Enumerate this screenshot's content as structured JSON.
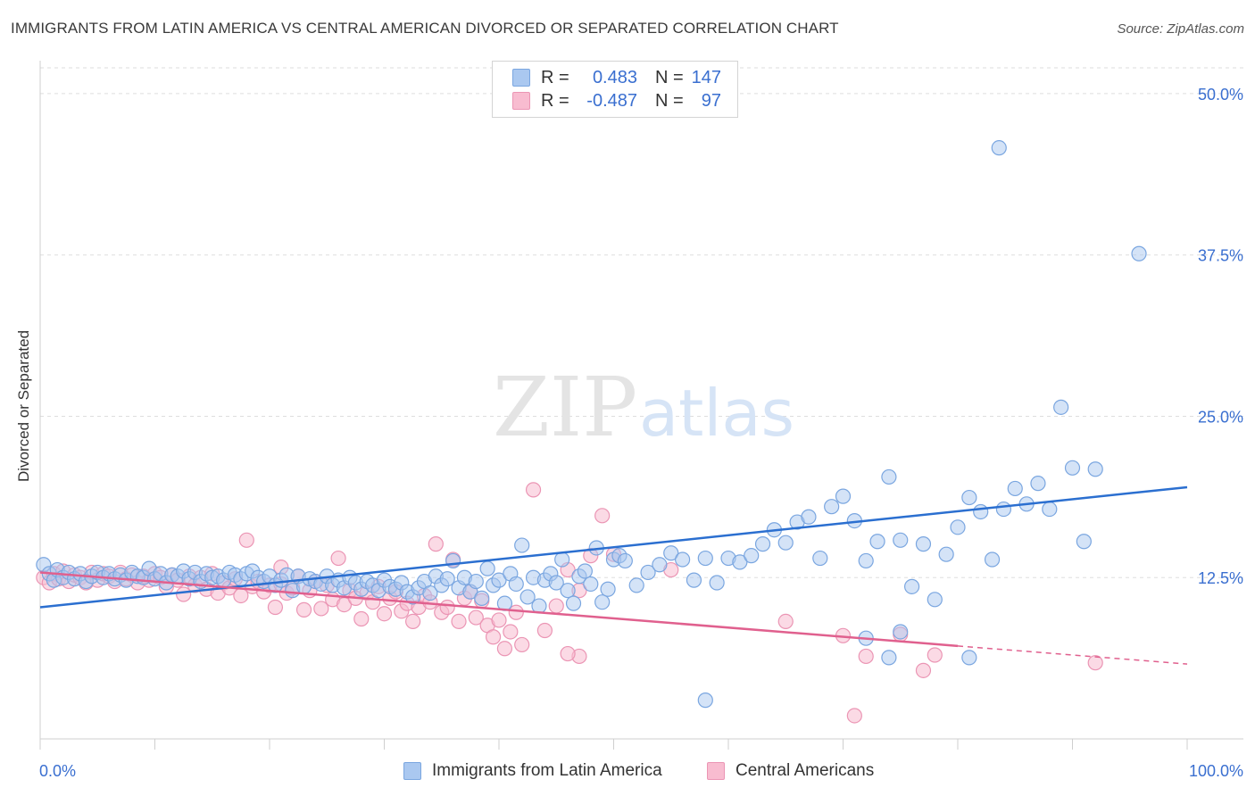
{
  "title": "IMMIGRANTS FROM LATIN AMERICA VS CENTRAL AMERICAN DIVORCED OR SEPARATED CORRELATION CHART",
  "source": "Source: ZipAtlas.com",
  "watermark": {
    "zip": "ZIP",
    "atlas": "atlas"
  },
  "colors": {
    "blue_fill": "#aac8f0",
    "blue_stroke": "#7aa6e0",
    "blue_line": "#2b6fd0",
    "pink_fill": "#f8bcd0",
    "pink_stroke": "#eb95b4",
    "pink_line": "#e0608e",
    "tick_text": "#3a6fd0",
    "grid": "#dddddd"
  },
  "legend": {
    "rows": [
      {
        "r_label": "R =",
        "r_value": "0.483",
        "n_label": "N =",
        "n_value": "147",
        "color": "#aac8f0"
      },
      {
        "r_label": "R =",
        "r_value": "-0.487",
        "n_label": "N =",
        "n_value": "97",
        "color": "#f8bcd0"
      }
    ]
  },
  "bottom_legend": {
    "series1": "Immigrants from Latin America",
    "series2": "Central Americans"
  },
  "chart_data": {
    "type": "scatter",
    "title": "IMMIGRANTS FROM LATIN AMERICA VS CENTRAL AMERICAN DIVORCED OR SEPARATED CORRELATION CHART",
    "xlabel": "",
    "ylabel": "Divorced or Separated",
    "xlim": [
      0,
      100
    ],
    "ylim": [
      0,
      52
    ],
    "x_tick_labels": [
      "0.0%",
      "100.0%"
    ],
    "y_ticks": [
      12.5,
      25.0,
      37.5,
      50.0
    ],
    "y_tick_labels": [
      "12.5%",
      "25.0%",
      "37.5%",
      "50.0%"
    ],
    "grid": true,
    "series": [
      {
        "name": "Immigrants from Latin America",
        "r": 0.483,
        "n": 147,
        "trend": {
          "x": [
            0,
            100
          ],
          "y": [
            10.2,
            19.5
          ]
        },
        "points": [
          [
            0.3,
            13.5
          ],
          [
            0.8,
            12.8
          ],
          [
            1.2,
            12.3
          ],
          [
            1.5,
            13.1
          ],
          [
            2,
            12.5
          ],
          [
            2.5,
            12.9
          ],
          [
            3,
            12.4
          ],
          [
            3.5,
            12.8
          ],
          [
            4,
            12.2
          ],
          [
            4.5,
            12.6
          ],
          [
            5,
            12.9
          ],
          [
            5.5,
            12.5
          ],
          [
            6,
            12.8
          ],
          [
            6.5,
            12.4
          ],
          [
            7,
            12.7
          ],
          [
            7.5,
            12.3
          ],
          [
            8,
            12.9
          ],
          [
            8.5,
            12.6
          ],
          [
            9,
            12.5
          ],
          [
            9.5,
            13.2
          ],
          [
            10,
            12.4
          ],
          [
            10.5,
            12.8
          ],
          [
            11,
            12.1
          ],
          [
            11.5,
            12.7
          ],
          [
            12,
            12.6
          ],
          [
            12.5,
            13.0
          ],
          [
            13,
            12.4
          ],
          [
            13.5,
            12.9
          ],
          [
            14,
            12.2
          ],
          [
            14.5,
            12.8
          ],
          [
            15,
            12.5
          ],
          [
            15.5,
            12.6
          ],
          [
            16,
            12.3
          ],
          [
            16.5,
            12.9
          ],
          [
            17,
            12.7
          ],
          [
            17.5,
            12.4
          ],
          [
            18,
            12.8
          ],
          [
            18.5,
            13.0
          ],
          [
            19,
            12.5
          ],
          [
            19.5,
            12.2
          ],
          [
            20,
            12.6
          ],
          [
            20.5,
            11.9
          ],
          [
            21,
            12.3
          ],
          [
            21.5,
            12.7
          ],
          [
            22,
            11.5
          ],
          [
            22.5,
            12.6
          ],
          [
            23,
            11.8
          ],
          [
            23.5,
            12.4
          ],
          [
            24,
            12.2
          ],
          [
            24.5,
            12.0
          ],
          [
            25,
            12.6
          ],
          [
            25.5,
            11.9
          ],
          [
            26,
            12.3
          ],
          [
            26.5,
            11.7
          ],
          [
            27,
            12.5
          ],
          [
            27.5,
            12.1
          ],
          [
            28,
            11.6
          ],
          [
            28.5,
            12.2
          ],
          [
            29,
            11.9
          ],
          [
            29.5,
            11.5
          ],
          [
            30,
            12.3
          ],
          [
            30.5,
            11.8
          ],
          [
            31,
            11.6
          ],
          [
            31.5,
            12.1
          ],
          [
            32,
            11.4
          ],
          [
            32.5,
            11.0
          ],
          [
            33,
            11.7
          ],
          [
            33.5,
            12.2
          ],
          [
            34,
            11.3
          ],
          [
            34.5,
            12.6
          ],
          [
            35,
            11.9
          ],
          [
            35.5,
            12.4
          ],
          [
            36,
            13.8
          ],
          [
            36.5,
            11.7
          ],
          [
            37,
            12.5
          ],
          [
            37.5,
            11.4
          ],
          [
            38,
            12.2
          ],
          [
            38.5,
            10.9
          ],
          [
            39,
            13.2
          ],
          [
            39.5,
            11.9
          ],
          [
            40,
            12.3
          ],
          [
            40.5,
            10.5
          ],
          [
            41,
            12.8
          ],
          [
            41.5,
            12.0
          ],
          [
            42,
            15.0
          ],
          [
            42.5,
            11.0
          ],
          [
            43,
            12.5
          ],
          [
            43.5,
            10.3
          ],
          [
            44,
            12.3
          ],
          [
            44.5,
            12.8
          ],
          [
            45,
            12.1
          ],
          [
            45.5,
            13.9
          ],
          [
            46,
            11.5
          ],
          [
            46.5,
            10.5
          ],
          [
            47,
            12.6
          ],
          [
            47.5,
            13.0
          ],
          [
            48,
            12.0
          ],
          [
            48.5,
            14.8
          ],
          [
            49,
            10.6
          ],
          [
            49.5,
            11.6
          ],
          [
            50,
            13.9
          ],
          [
            50.5,
            14.2
          ],
          [
            51,
            13.8
          ],
          [
            52,
            11.9
          ],
          [
            53,
            12.9
          ],
          [
            54,
            13.5
          ],
          [
            55,
            14.4
          ],
          [
            56,
            13.9
          ],
          [
            57,
            12.3
          ],
          [
            58,
            14.0
          ],
          [
            59,
            12.1
          ],
          [
            60,
            14.0
          ],
          [
            61,
            13.7
          ],
          [
            62,
            14.2
          ],
          [
            63,
            15.1
          ],
          [
            64,
            16.2
          ],
          [
            65,
            15.2
          ],
          [
            66,
            16.8
          ],
          [
            67,
            17.2
          ],
          [
            68,
            14.0
          ],
          [
            69,
            18.0
          ],
          [
            70,
            18.8
          ],
          [
            71,
            16.9
          ],
          [
            72,
            13.8
          ],
          [
            73,
            15.3
          ],
          [
            74,
            20.3
          ],
          [
            75,
            15.4
          ],
          [
            76,
            11.8
          ],
          [
            77,
            15.1
          ],
          [
            78,
            10.8
          ],
          [
            79,
            14.3
          ],
          [
            80,
            16.4
          ],
          [
            81,
            18.7
          ],
          [
            82,
            17.6
          ],
          [
            83,
            13.9
          ],
          [
            84,
            17.8
          ],
          [
            85,
            19.4
          ],
          [
            86,
            18.2
          ],
          [
            87,
            19.8
          ],
          [
            88,
            17.8
          ],
          [
            89,
            25.7
          ],
          [
            90,
            21.0
          ],
          [
            91,
            15.3
          ],
          [
            92,
            20.9
          ],
          [
            83.6,
            45.8
          ],
          [
            95.8,
            37.6
          ],
          [
            72,
            7.8
          ],
          [
            74,
            6.3
          ],
          [
            75,
            8.3
          ],
          [
            58,
            3.0
          ],
          [
            81,
            6.3
          ]
        ]
      },
      {
        "name": "Central Americans",
        "r": -0.487,
        "n": 97,
        "trend": {
          "x": [
            0,
            80,
            100
          ],
          "y": [
            12.9,
            7.2,
            5.8
          ]
        },
        "points": [
          [
            0.3,
            12.5
          ],
          [
            0.8,
            12.1
          ],
          [
            1.2,
            12.8
          ],
          [
            1.6,
            12.4
          ],
          [
            2,
            13.0
          ],
          [
            2.5,
            12.2
          ],
          [
            3,
            12.7
          ],
          [
            3.5,
            12.5
          ],
          [
            4,
            12.1
          ],
          [
            4.5,
            12.9
          ],
          [
            5,
            12.3
          ],
          [
            5.5,
            12.8
          ],
          [
            6,
            12.6
          ],
          [
            6.5,
            12.2
          ],
          [
            7,
            12.9
          ],
          [
            7.5,
            12.4
          ],
          [
            8,
            12.7
          ],
          [
            8.5,
            12.1
          ],
          [
            9,
            12.6
          ],
          [
            9.5,
            12.3
          ],
          [
            10,
            12.8
          ],
          [
            10.5,
            12.5
          ],
          [
            11,
            11.8
          ],
          [
            11.5,
            12.7
          ],
          [
            12,
            12.3
          ],
          [
            12.5,
            11.2
          ],
          [
            13,
            12.6
          ],
          [
            13.5,
            11.9
          ],
          [
            14,
            12.5
          ],
          [
            14.5,
            11.6
          ],
          [
            15,
            12.8
          ],
          [
            15.5,
            11.3
          ],
          [
            16,
            12.1
          ],
          [
            16.5,
            11.7
          ],
          [
            17,
            12.4
          ],
          [
            17.5,
            11.1
          ],
          [
            18,
            15.4
          ],
          [
            18.5,
            11.8
          ],
          [
            19,
            12.2
          ],
          [
            19.5,
            11.4
          ],
          [
            20,
            11.9
          ],
          [
            20.5,
            10.2
          ],
          [
            21,
            12.0
          ],
          [
            21.5,
            11.3
          ],
          [
            22,
            11.7
          ],
          [
            22.5,
            12.6
          ],
          [
            23,
            10.0
          ],
          [
            23.5,
            11.5
          ],
          [
            24,
            12.2
          ],
          [
            24.5,
            10.1
          ],
          [
            25,
            11.9
          ],
          [
            25.5,
            10.8
          ],
          [
            26,
            14.0
          ],
          [
            26.5,
            10.4
          ],
          [
            27,
            11.5
          ],
          [
            27.5,
            10.9
          ],
          [
            28,
            9.3
          ],
          [
            28.5,
            11.3
          ],
          [
            29,
            10.6
          ],
          [
            29.5,
            11.8
          ],
          [
            30,
            9.7
          ],
          [
            30.5,
            10.9
          ],
          [
            31,
            11.4
          ],
          [
            31.5,
            9.9
          ],
          [
            32,
            10.5
          ],
          [
            32.5,
            9.1
          ],
          [
            33,
            10.2
          ],
          [
            33.5,
            11.1
          ],
          [
            34,
            10.6
          ],
          [
            34.5,
            15.1
          ],
          [
            35,
            9.8
          ],
          [
            35.5,
            10.2
          ],
          [
            36,
            13.9
          ],
          [
            36.5,
            9.1
          ],
          [
            37,
            10.9
          ],
          [
            37.5,
            11.4
          ],
          [
            38,
            9.4
          ],
          [
            38.5,
            10.7
          ],
          [
            39,
            8.8
          ],
          [
            39.5,
            7.9
          ],
          [
            40,
            9.2
          ],
          [
            40.5,
            7.0
          ],
          [
            41,
            8.3
          ],
          [
            41.5,
            9.8
          ],
          [
            42,
            7.3
          ],
          [
            43,
            19.3
          ],
          [
            44,
            8.4
          ],
          [
            45,
            10.3
          ],
          [
            46,
            13.1
          ],
          [
            47,
            11.5
          ],
          [
            48,
            14.2
          ],
          [
            49,
            17.3
          ],
          [
            50,
            14.3
          ],
          [
            55,
            13.1
          ],
          [
            65,
            9.1
          ],
          [
            70,
            8.0
          ],
          [
            71,
            1.8
          ],
          [
            72,
            6.4
          ],
          [
            75,
            8.1
          ],
          [
            77,
            5.3
          ],
          [
            78,
            6.5
          ],
          [
            92,
            5.9
          ],
          [
            47,
            6.4
          ],
          [
            46,
            6.6
          ],
          [
            21,
            13.3
          ]
        ]
      }
    ]
  }
}
